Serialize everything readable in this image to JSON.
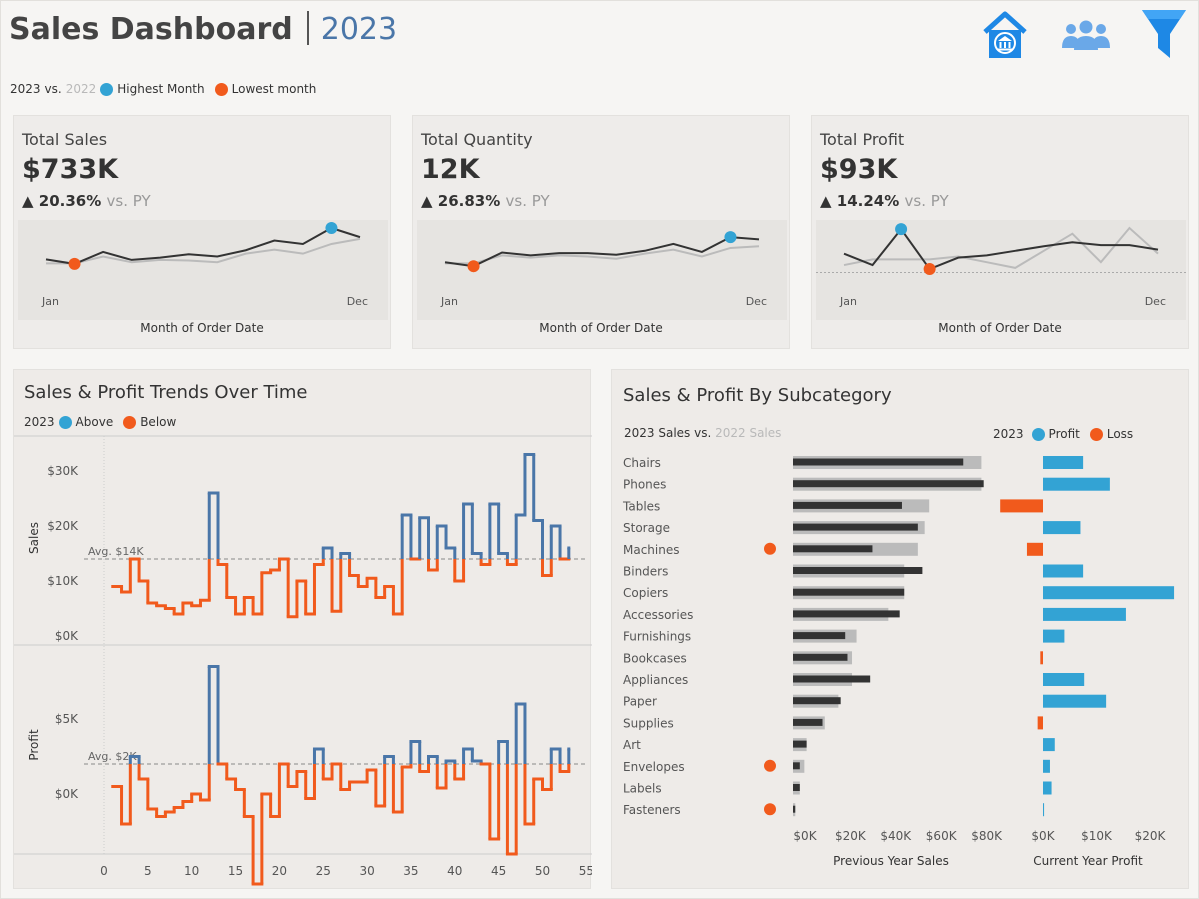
{
  "header": {
    "title": "Sales Dashboard",
    "year": "2023"
  },
  "icons": {
    "home": "home-bank-icon",
    "people": "users-icon",
    "filter": "filter-funnel-icon"
  },
  "legend_top": {
    "current": "2023",
    "vs": "vs.",
    "previous": "2022",
    "highest": "Highest Month",
    "lowest": "Lowest month"
  },
  "colors": {
    "current": "#333333",
    "previous": "#bbbbbb",
    "highlight": "#33a3d4",
    "low": "#f15a1c",
    "above": "#4a76a8",
    "below": "#f15a1c"
  },
  "kpis": [
    {
      "label": "Total Sales",
      "value": "$733K",
      "arrow": "▲",
      "change": "20.36%",
      "vs": "vs. PY",
      "x_start": "Jan",
      "x_end": "Dec",
      "axis": "Month of Order Date",
      "highest_month": 11,
      "lowest_month": 2
    },
    {
      "label": "Total Quantity",
      "value": "12K",
      "arrow": "▲",
      "change": "26.83%",
      "vs": "vs. PY",
      "x_start": "Jan",
      "x_end": "Dec",
      "axis": "Month of Order Date",
      "highest_month": 11,
      "lowest_month": 2
    },
    {
      "label": "Total Profit",
      "value": "$93K",
      "arrow": "▲",
      "change": "14.24%",
      "vs": "vs. PY",
      "x_start": "Jan",
      "x_end": "Dec",
      "axis": "Month of Order Date",
      "highest_month": 3,
      "lowest_month": 4
    }
  ],
  "trends": {
    "title": "Sales & Profit Trends Over Time",
    "legend": {
      "year": "2023",
      "above": "Above",
      "below": "Below"
    },
    "sales_label": "Sales",
    "profit_label": "Profit",
    "sales_avg_label": "Avg. $14K",
    "profit_avg_label": "Avg. $2K",
    "sales_ticks": [
      "$30K",
      "$20K",
      "$10K",
      "$0K"
    ],
    "profit_ticks": [
      "$5K",
      "$0K"
    ],
    "x_ticks": [
      "0",
      "5",
      "10",
      "15",
      "20",
      "25",
      "30",
      "35",
      "40",
      "45",
      "50",
      "55"
    ]
  },
  "subcat": {
    "title": "Sales & Profit By Subcategory",
    "sales_legend_current": "2023 Sales vs.",
    "sales_legend_prev": "2022 Sales",
    "profit_legend": {
      "year": "2023",
      "profit": "Profit",
      "loss": "Loss"
    },
    "sales_ticks": [
      "$0K",
      "$20K",
      "$40K",
      "$60K",
      "$80K"
    ],
    "profit_ticks": [
      "$0K",
      "$10K",
      "$20K"
    ],
    "sales_axis": "Previous Year Sales",
    "profit_axis": "Current Year Profit",
    "rows": [
      {
        "name": "Chairs",
        "cur": 75,
        "prev": 83,
        "profit": 7.5,
        "flag": false
      },
      {
        "name": "Phones",
        "cur": 84,
        "prev": 83,
        "profit": 12.5,
        "flag": false
      },
      {
        "name": "Tables",
        "cur": 48,
        "prev": 60,
        "profit": -8,
        "flag": false
      },
      {
        "name": "Storage",
        "cur": 55,
        "prev": 58,
        "profit": 7,
        "flag": false
      },
      {
        "name": "Machines",
        "cur": 35,
        "prev": 55,
        "profit": -3,
        "flag": true
      },
      {
        "name": "Binders",
        "cur": 57,
        "prev": 49,
        "profit": 7.5,
        "flag": false
      },
      {
        "name": "Copiers",
        "cur": 49,
        "prev": 49,
        "profit": 24.5,
        "flag": false
      },
      {
        "name": "Accessories",
        "cur": 47,
        "prev": 42,
        "profit": 15.5,
        "flag": false
      },
      {
        "name": "Furnishings",
        "cur": 23,
        "prev": 28,
        "profit": 4,
        "flag": false
      },
      {
        "name": "Bookcases",
        "cur": 24,
        "prev": 26,
        "profit": -0.5,
        "flag": false
      },
      {
        "name": "Appliances",
        "cur": 34,
        "prev": 26,
        "profit": 7.7,
        "flag": false
      },
      {
        "name": "Paper",
        "cur": 21,
        "prev": 20,
        "profit": 11.8,
        "flag": false
      },
      {
        "name": "Supplies",
        "cur": 13,
        "prev": 14,
        "profit": -1,
        "flag": false
      },
      {
        "name": "Art",
        "cur": 6,
        "prev": 6,
        "profit": 2.2,
        "flag": false
      },
      {
        "name": "Envelopes",
        "cur": 3,
        "prev": 5,
        "profit": 1.3,
        "flag": true
      },
      {
        "name": "Labels",
        "cur": 3,
        "prev": 3,
        "profit": 1.6,
        "flag": false
      },
      {
        "name": "Fasteners",
        "cur": 1,
        "prev": 1,
        "profit": 0.2,
        "flag": true
      }
    ]
  },
  "chart_data": [
    {
      "type": "line",
      "title": "Total Sales",
      "x": [
        "Jan",
        "Feb",
        "Mar",
        "Apr",
        "May",
        "Jun",
        "Jul",
        "Aug",
        "Sep",
        "Oct",
        "Nov",
        "Dec"
      ],
      "series": [
        {
          "values": [
            45,
            37,
            58,
            44,
            48,
            54,
            50,
            61,
            78,
            72,
            100,
            84
          ]
        },
        {
          "values": [
            38,
            38,
            50,
            40,
            44,
            43,
            40,
            55,
            62,
            55,
            72,
            81
          ]
        }
      ]
    },
    {
      "type": "line",
      "title": "Total Quantity",
      "x": [
        "Jan",
        "Feb",
        "Mar",
        "Apr",
        "May",
        "Jun",
        "Jul",
        "Aug",
        "Sep",
        "Oct",
        "Nov",
        "Dec"
      ],
      "series": [
        {
          "values": [
            40,
            33,
            57,
            52,
            56,
            56,
            53,
            60,
            72,
            58,
            84,
            80
          ]
        },
        {
          "values": [
            38,
            38,
            52,
            48,
            52,
            50,
            46,
            55,
            62,
            50,
            65,
            68
          ]
        }
      ]
    },
    {
      "type": "line",
      "title": "Total Profit",
      "x": [
        "Jan",
        "Feb",
        "Mar",
        "Apr",
        "May",
        "Jun",
        "Jul",
        "Aug",
        "Sep",
        "Oct",
        "Nov",
        "Dec"
      ],
      "series": [
        {
          "values": [
            55,
            35,
            98,
            28,
            48,
            52,
            60,
            68,
            75,
            70,
            70,
            62
          ]
        },
        {
          "values": [
            35,
            45,
            45,
            45,
            50,
            40,
            30,
            60,
            90,
            40,
            100,
            55
          ]
        }
      ]
    },
    {
      "type": "line",
      "title": "Sales & Profit Trends Over Time",
      "xlabel": "",
      "ylabel": "Sales",
      "ylim": [
        0,
        35000
      ],
      "x": [
        1,
        2,
        3,
        4,
        5,
        6,
        7,
        8,
        9,
        10,
        11,
        12,
        13,
        14,
        15,
        16,
        17,
        18,
        19,
        20,
        21,
        22,
        23,
        24,
        25,
        26,
        27,
        28,
        29,
        30,
        31,
        32,
        33,
        34,
        35,
        36,
        37,
        38,
        39,
        40,
        41,
        42,
        43,
        44,
        45,
        46,
        47,
        48,
        49,
        50,
        51,
        52,
        53
      ],
      "series": [
        {
          "name": "Sales",
          "values": [
            9000,
            8000,
            14000,
            10000,
            6000,
            5500,
            5000,
            4000,
            6000,
            5500,
            6500,
            26000,
            13000,
            7000,
            4000,
            7000,
            4000,
            11500,
            12000,
            14000,
            3500,
            10000,
            4000,
            13000,
            16000,
            4500,
            15000,
            11000,
            9000,
            10500,
            7000,
            9000,
            4000,
            22000,
            14000,
            21500,
            12000,
            20000,
            16000,
            10000,
            24000,
            15000,
            13000,
            24000,
            15000,
            13000,
            22000,
            33000,
            21000,
            11000,
            20000,
            14000,
            16000
          ]
        },
        {
          "name": "Profit",
          "values": [
            500,
            -2000,
            2500,
            1000,
            -1000,
            -1500,
            -1200,
            -900,
            -500,
            0,
            -400,
            8500,
            2000,
            1000,
            300,
            -1500,
            -6000,
            0,
            -1500,
            2000,
            500,
            1500,
            -300,
            3000,
            1000,
            2000,
            300,
            800,
            800,
            1600,
            -800,
            2500,
            -1200,
            1800,
            3500,
            1500,
            2500,
            400,
            2200,
            1000,
            3000,
            2200,
            2000,
            -3000,
            3500,
            -4000,
            6000,
            -2000,
            1000,
            300,
            3000,
            1500,
            3000
          ]
        }
      ]
    },
    {
      "type": "bar",
      "title": "Sales & Profit By Subcategory",
      "categories": [
        "Chairs",
        "Phones",
        "Tables",
        "Storage",
        "Machines",
        "Binders",
        "Copiers",
        "Accessories",
        "Furnishings",
        "Bookcases",
        "Appliances",
        "Paper",
        "Supplies",
        "Art",
        "Envelopes",
        "Labels",
        "Fasteners"
      ],
      "series": [
        {
          "name": "2023 Sales",
          "values": [
            75000,
            84000,
            48000,
            55000,
            35000,
            57000,
            49000,
            47000,
            23000,
            24000,
            34000,
            21000,
            13000,
            6000,
            3000,
            3000,
            1000
          ]
        },
        {
          "name": "2022 Sales",
          "values": [
            83000,
            83000,
            60000,
            58000,
            55000,
            49000,
            49000,
            42000,
            28000,
            26000,
            26000,
            20000,
            14000,
            6000,
            5000,
            3000,
            1000
          ]
        },
        {
          "name": "Profit",
          "values": [
            7500,
            12500,
            -8000,
            7000,
            -3000,
            7500,
            24500,
            15500,
            4000,
            -500,
            7700,
            11800,
            -1000,
            2200,
            1300,
            1600,
            200
          ]
        }
      ]
    }
  ]
}
